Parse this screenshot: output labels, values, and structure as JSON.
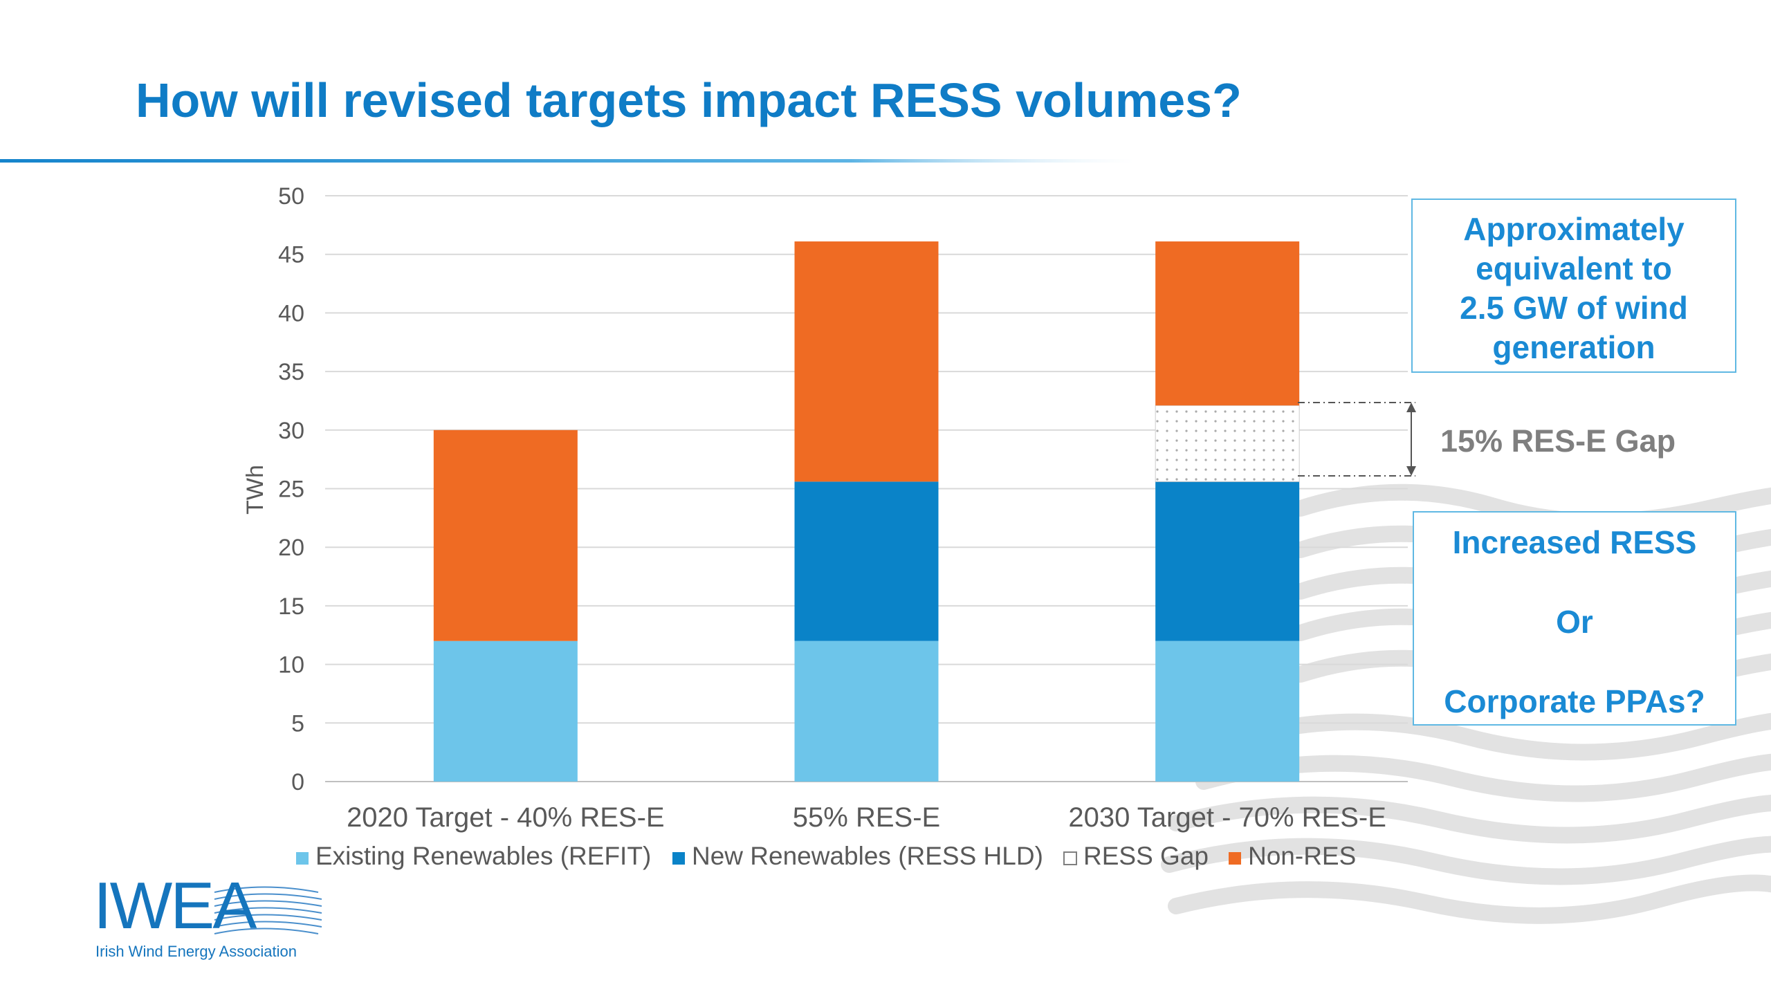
{
  "slide": {
    "title": "How will revised targets impact RESS volumes?"
  },
  "chart_data": {
    "type": "bar",
    "stacked": true,
    "categories": [
      "2020 Target - 40% RES-E",
      "55% RES-E",
      "2030 Target - 70% RES-E"
    ],
    "ylabel": "TWh",
    "ylim": [
      0,
      50
    ],
    "yticks": [
      0,
      5,
      10,
      15,
      20,
      25,
      30,
      35,
      40,
      45,
      50
    ],
    "grid": true,
    "legend_position": "bottom",
    "series": [
      {
        "name": "Existing Renewables (REFIT)",
        "color": "#6dc5ea",
        "values": [
          12,
          12,
          12
        ]
      },
      {
        "name": "New Renewables (RESS HLD)",
        "color": "#0a83c8",
        "values": [
          0,
          13.6,
          13.6
        ]
      },
      {
        "name": "RESS Gap",
        "color": "#ffffff",
        "pattern": "dotted",
        "values": [
          0,
          0,
          6.5
        ]
      },
      {
        "name": "Non-RES",
        "color": "#ef6b23",
        "values": [
          18,
          20.5,
          14
        ]
      }
    ]
  },
  "annotations": {
    "gap_label": "15% RES-E Gap",
    "wind_box": [
      "Approximately",
      "equivalent to",
      "2.5 GW of wind",
      "generation"
    ],
    "choice_box": {
      "line1": "Increased RESS",
      "line2": "Or",
      "line3": "Corporate PPAs?"
    }
  },
  "logo": {
    "text": "IWEA",
    "subtitle": "Irish Wind Energy Association"
  },
  "colors": {
    "title": "#0f7cc6",
    "callout_border": "#5fb8e3",
    "callout_text": "#1a8ad4"
  }
}
